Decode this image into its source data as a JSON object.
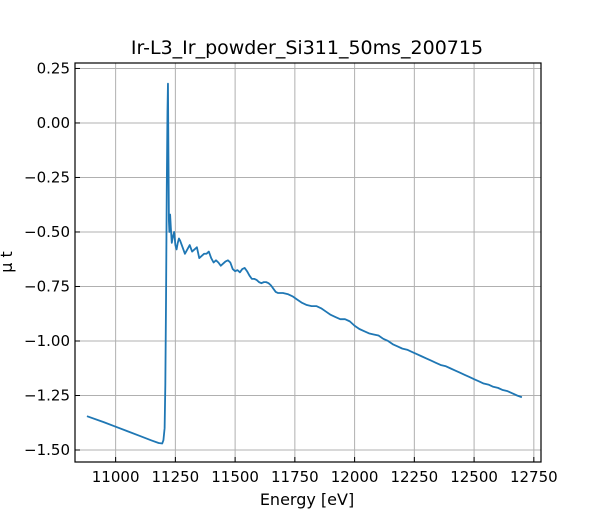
{
  "chart_data": {
    "type": "line",
    "title": "Ir-L3_Ir_powder_Si311_50ms_200715",
    "xlabel": "Energy [eV]",
    "ylabel": "μ t",
    "xlim": [
      10830,
      12780
    ],
    "ylim": [
      -1.555,
      0.275
    ],
    "grid": true,
    "x_ticks": [
      11000,
      11250,
      11500,
      11750,
      12000,
      12250,
      12500,
      12750
    ],
    "x_tick_labels": [
      "11000",
      "11250",
      "11500",
      "11750",
      "12000",
      "12250",
      "12500",
      "12750"
    ],
    "y_ticks": [
      0.25,
      0.0,
      -0.25,
      -0.5,
      -0.75,
      -1.0,
      -1.25,
      -1.5
    ],
    "y_tick_labels": [
      "0.25",
      "0.00",
      "−0.25",
      "−0.50",
      "−0.75",
      "−1.00",
      "−1.25",
      "−1.50"
    ],
    "series": [
      {
        "color": "#1f77b4",
        "x": [
          10880,
          10950,
          11000,
          11050,
          11100,
          11150,
          11180,
          11195,
          11200,
          11205,
          11208,
          11211,
          11214,
          11217,
          11219,
          11221,
          11223,
          11225,
          11228,
          11231,
          11235,
          11240,
          11245,
          11250,
          11255,
          11260,
          11265,
          11270,
          11280,
          11290,
          11300,
          11310,
          11320,
          11330,
          11340,
          11350,
          11360,
          11370,
          11380,
          11390,
          11400,
          11410,
          11420,
          11430,
          11440,
          11450,
          11460,
          11470,
          11480,
          11490,
          11500,
          11510,
          11520,
          11530,
          11540,
          11550,
          11560,
          11570,
          11580,
          11590,
          11600,
          11610,
          11620,
          11630,
          11640,
          11650,
          11660,
          11670,
          11680,
          11690,
          11700,
          11720,
          11740,
          11760,
          11780,
          11800,
          11820,
          11840,
          11860,
          11880,
          11900,
          11920,
          11940,
          11960,
          11980,
          12000,
          12020,
          12040,
          12060,
          12080,
          12100,
          12120,
          12140,
          12160,
          12180,
          12200,
          12220,
          12240,
          12260,
          12280,
          12300,
          12320,
          12340,
          12360,
          12380,
          12400,
          12420,
          12440,
          12460,
          12480,
          12500,
          12520,
          12540,
          12560,
          12580,
          12600,
          12620,
          12640,
          12660,
          12680,
          12700
        ],
        "y": [
          -1.345,
          -1.372,
          -1.393,
          -1.414,
          -1.435,
          -1.456,
          -1.468,
          -1.47,
          -1.455,
          -1.4,
          -1.2,
          -0.8,
          -0.3,
          0.05,
          0.18,
          -0.15,
          -0.45,
          -0.5,
          -0.42,
          -0.48,
          -0.55,
          -0.52,
          -0.5,
          -0.56,
          -0.58,
          -0.55,
          -0.53,
          -0.54,
          -0.57,
          -0.6,
          -0.58,
          -0.56,
          -0.59,
          -0.58,
          -0.57,
          -0.62,
          -0.61,
          -0.6,
          -0.6,
          -0.59,
          -0.62,
          -0.64,
          -0.63,
          -0.64,
          -0.655,
          -0.645,
          -0.635,
          -0.63,
          -0.64,
          -0.67,
          -0.68,
          -0.675,
          -0.685,
          -0.67,
          -0.665,
          -0.68,
          -0.7,
          -0.715,
          -0.715,
          -0.72,
          -0.73,
          -0.735,
          -0.73,
          -0.73,
          -0.735,
          -0.745,
          -0.76,
          -0.775,
          -0.78,
          -0.78,
          -0.78,
          -0.785,
          -0.795,
          -0.81,
          -0.825,
          -0.835,
          -0.84,
          -0.84,
          -0.85,
          -0.865,
          -0.88,
          -0.89,
          -0.9,
          -0.9,
          -0.91,
          -0.93,
          -0.945,
          -0.955,
          -0.965,
          -0.97,
          -0.975,
          -0.99,
          -1.0,
          -1.015,
          -1.025,
          -1.035,
          -1.04,
          -1.05,
          -1.06,
          -1.07,
          -1.08,
          -1.09,
          -1.1,
          -1.11,
          -1.115,
          -1.125,
          -1.135,
          -1.145,
          -1.155,
          -1.165,
          -1.175,
          -1.185,
          -1.195,
          -1.2,
          -1.21,
          -1.215,
          -1.225,
          -1.23,
          -1.24,
          -1.25,
          -1.258
        ]
      }
    ]
  }
}
